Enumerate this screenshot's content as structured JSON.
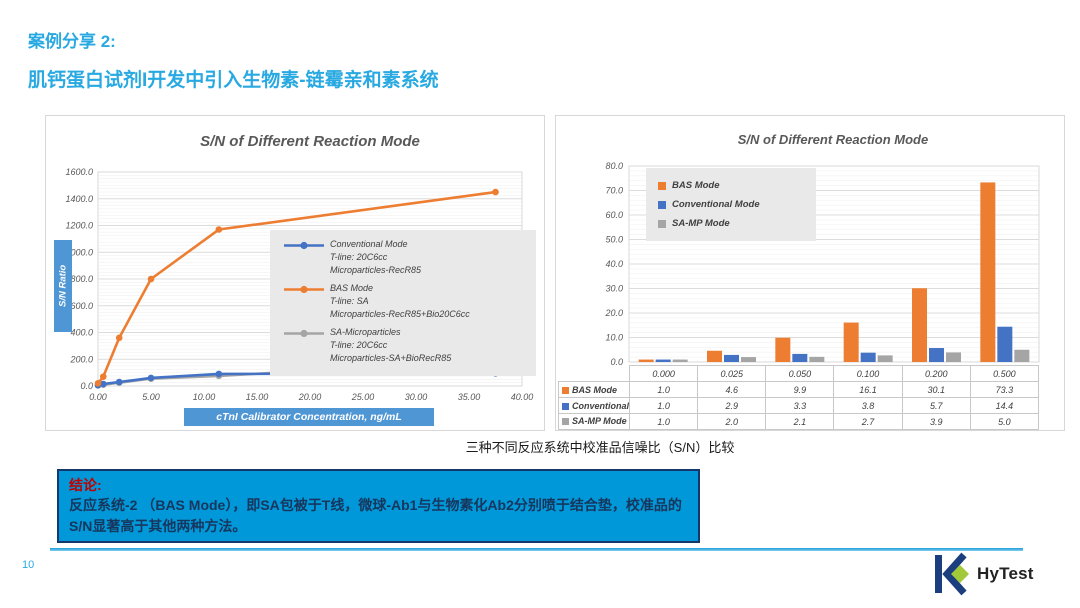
{
  "slide": {
    "page_number": "10",
    "header": {
      "line1": "案例分享 2:",
      "line2": "肌钙蛋白试剂I开发中引入生物素-链霉亲和素系统"
    },
    "caption": "三种不同反应系统中校准品信噪比（S/N）比较",
    "conclusion": {
      "title": "结论:",
      "body": "反应系统-2 （BAS Mode），即SA包被于T线，微球-Ab1与生物素化Ab2分别喷于结合垫，校准品的S/N显著高于其他两种方法。"
    },
    "logo_text": "HyTest"
  },
  "colors": {
    "accent_blue": "#29A9E1",
    "axis_label_box": "#4F96D4",
    "conclusion_bg": "#0098D8",
    "conclusion_border": "#14386B",
    "conclusion_title": "#C00000",
    "conclusion_text": "#17365D",
    "series_blue": "#4472C4",
    "series_orange": "#ED7D31",
    "series_gray": "#A5A5A5",
    "logo_navy": "#1B3F7E",
    "logo_green": "#A2C93A"
  },
  "chart_data": [
    {
      "type": "line",
      "title": "S/N of Different Reaction Mode",
      "xlabel": "cTnI Calibrator Concentration, ng/mL",
      "ylabel": "S/N Ratio",
      "xlim": [
        0,
        40
      ],
      "ylim": [
        0,
        1600
      ],
      "xtick_labels": [
        "0.00",
        "5.00",
        "10.00",
        "15.00",
        "20.00",
        "25.00",
        "30.00",
        "35.00",
        "40.00"
      ],
      "ytick_labels": [
        "0.0",
        "200.0",
        "400.0",
        "600.0",
        "800.0",
        "1000.0",
        "1200.0",
        "1400.0",
        "1600.0"
      ],
      "grid": "horizontal, minor every 25, major every 200",
      "legend_position": "middle-right",
      "x": [
        0,
        0.5,
        2,
        5,
        11.4,
        37.5
      ],
      "series": [
        {
          "name": "Conventional Mode",
          "sub": [
            "T-line: 20C6cc",
            "Microparticles-RecR85"
          ],
          "color": "#4472C4",
          "values": [
            5,
            15,
            30,
            60,
            90,
            95
          ]
        },
        {
          "name": "BAS Mode",
          "sub": [
            "T-line:  SA",
            "Microparticles-RecR85+Bio20C6cc"
          ],
          "color": "#ED7D31",
          "values": [
            20,
            70,
            360,
            800,
            1170,
            1450
          ]
        },
        {
          "name": "SA-Microparticles",
          "sub": [
            "T-line: 20C6cc",
            "Microparticles-SA+BioRecR85"
          ],
          "color": "#A5A5A5",
          "values": [
            5,
            10,
            25,
            55,
            75,
            195
          ]
        }
      ]
    },
    {
      "type": "bar",
      "title": "S/N of Different Reaction Mode",
      "categories": [
        "0.000",
        "0.025",
        "0.050",
        "0.100",
        "0.200",
        "0.500"
      ],
      "ylim": [
        0,
        80
      ],
      "ytick_labels": [
        "0.0",
        "10.0",
        "20.0",
        "30.0",
        "40.0",
        "50.0",
        "60.0",
        "70.0",
        "80.0"
      ],
      "grid": "horizontal, minor every 2, major every 10",
      "legend_position": "top-left",
      "data_table": true,
      "series": [
        {
          "name": "BAS Mode",
          "color": "#ED7D31",
          "values": [
            1.0,
            4.6,
            9.9,
            16.1,
            30.1,
            73.3
          ]
        },
        {
          "name": "Conventional Mode",
          "color": "#4472C4",
          "values": [
            1.0,
            2.9,
            3.3,
            3.8,
            5.7,
            14.4
          ]
        },
        {
          "name": "SA-MP Mode",
          "color": "#A5A5A5",
          "values": [
            1.0,
            2.0,
            2.1,
            2.7,
            3.9,
            5.0
          ],
          "annotation": "?"
        }
      ]
    }
  ]
}
